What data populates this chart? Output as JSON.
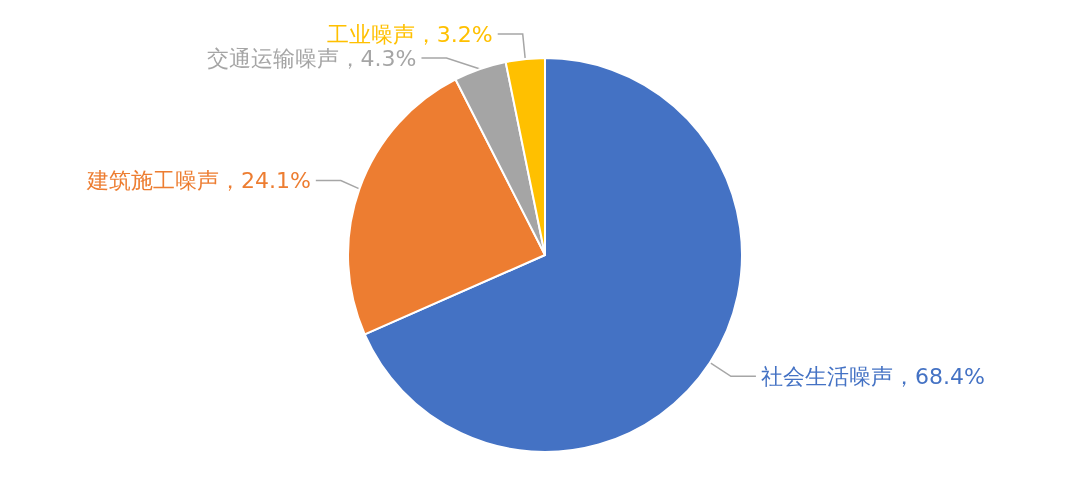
{
  "chart_data": {
    "type": "pie",
    "categories": [
      "社会生活噪声",
      "建筑施工噪声",
      "交通运输噪声",
      "工业噪声"
    ],
    "values": [
      68.4,
      24.1,
      4.3,
      3.2
    ],
    "colors": [
      "#4472c4",
      "#ed7d31",
      "#a5a5a5",
      "#ffc000"
    ],
    "value_labels": [
      "68.4%",
      "24.1%",
      "4.3%",
      "3.2%"
    ],
    "legend": false
  }
}
